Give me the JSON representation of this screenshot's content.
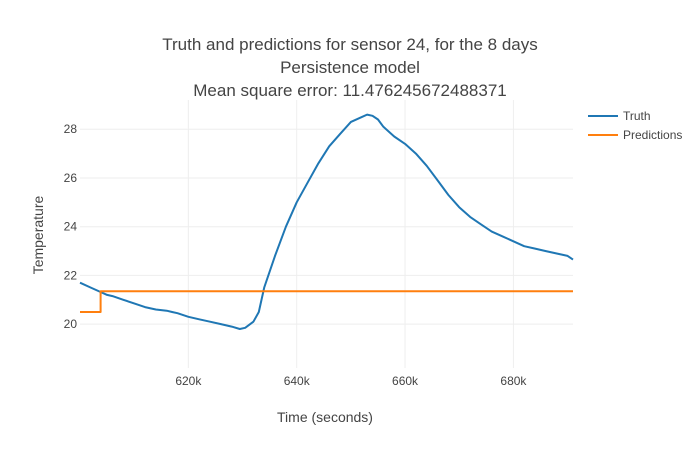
{
  "chart_data": {
    "type": "line",
    "title_lines": [
      "Truth and predictions for sensor 24, for the 8 days",
      "Persistence model",
      "Mean square error: 11.476245672488371"
    ],
    "xlabel": "Time (seconds)",
    "ylabel": "Temperature",
    "xlim": [
      600000,
      691000
    ],
    "ylim": [
      18.2,
      29.2
    ],
    "x_ticks": [
      620000,
      640000,
      660000,
      680000
    ],
    "x_tick_labels": [
      "620k",
      "640k",
      "660k",
      "680k"
    ],
    "y_ticks": [
      20,
      22,
      24,
      26,
      28
    ],
    "y_tick_labels": [
      "20",
      "22",
      "24",
      "26",
      "28"
    ],
    "grid": true,
    "legend_position": "top-right",
    "series": [
      {
        "name": "Truth",
        "color": "#1f77b4",
        "x": [
          600000,
          602000,
          604000,
          605000,
          606000,
          608000,
          610000,
          612000,
          614000,
          616000,
          617000,
          618000,
          620000,
          622000,
          624000,
          626000,
          628000,
          629500,
          630500,
          632000,
          633000,
          634000,
          636000,
          638000,
          640000,
          642000,
          644000,
          646000,
          648000,
          650000,
          652000,
          653000,
          654000,
          655000,
          656000,
          658000,
          660000,
          662000,
          664000,
          666000,
          668000,
          670000,
          672000,
          674000,
          676000,
          678000,
          680000,
          682000,
          684000,
          686000,
          688000,
          690000,
          691000
        ],
        "y": [
          21.7,
          21.5,
          21.3,
          21.2,
          21.15,
          21.0,
          20.85,
          20.7,
          20.6,
          20.55,
          20.5,
          20.45,
          20.3,
          20.2,
          20.1,
          20.0,
          19.9,
          19.8,
          19.85,
          20.1,
          20.5,
          21.5,
          22.8,
          24.0,
          25.0,
          25.8,
          26.6,
          27.3,
          27.8,
          28.3,
          28.5,
          28.6,
          28.55,
          28.4,
          28.1,
          27.7,
          27.4,
          27.0,
          26.5,
          25.9,
          25.3,
          24.8,
          24.4,
          24.1,
          23.8,
          23.6,
          23.4,
          23.2,
          23.1,
          23.0,
          22.9,
          22.8,
          22.65
        ]
      },
      {
        "name": "Predictions",
        "color": "#ff7f0e",
        "x": [
          600000,
          603800,
          603800,
          691000
        ],
        "y": [
          20.5,
          20.5,
          21.35,
          21.35
        ]
      }
    ]
  }
}
